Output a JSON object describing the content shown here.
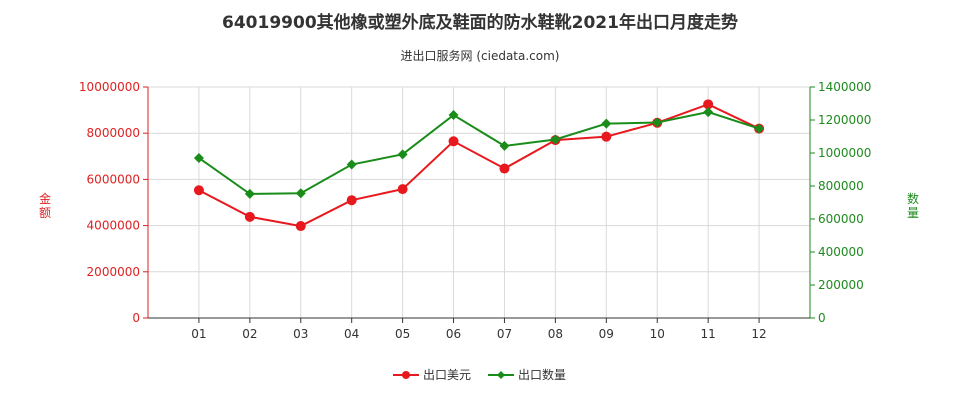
{
  "chart_data": {
    "type": "line",
    "title": "64019900其他橡或塑外底及鞋面的防水鞋靴2021年出口月度走势",
    "subtitle": "进出口服务网 (ciedata.com)",
    "categories": [
      "01",
      "02",
      "03",
      "04",
      "05",
      "06",
      "07",
      "08",
      "09",
      "10",
      "11",
      "12"
    ],
    "left_axis": {
      "label": "金额",
      "ylim": [
        0,
        10000000
      ],
      "ticks": [
        0,
        2000000,
        4000000,
        6000000,
        8000000,
        10000000
      ]
    },
    "right_axis": {
      "label": "数量",
      "ylim": [
        0,
        1400000
      ],
      "ticks": [
        0,
        200000,
        400000,
        600000,
        800000,
        1000000,
        1200000,
        1400000
      ]
    },
    "series": [
      {
        "name": "出口美元",
        "axis": "left",
        "color": "#e8191e",
        "values": [
          5530000,
          4380000,
          3980000,
          5100000,
          5580000,
          7650000,
          6470000,
          7700000,
          7850000,
          8450000,
          9250000,
          8200000
        ]
      },
      {
        "name": "出口数量",
        "axis": "right",
        "color": "#1a8c1a",
        "values": [
          970000,
          752000,
          756000,
          930000,
          992000,
          1230000,
          1043000,
          1082000,
          1178000,
          1185000,
          1248000,
          1148000
        ]
      }
    ],
    "grid": true,
    "legend_position": "bottom"
  }
}
